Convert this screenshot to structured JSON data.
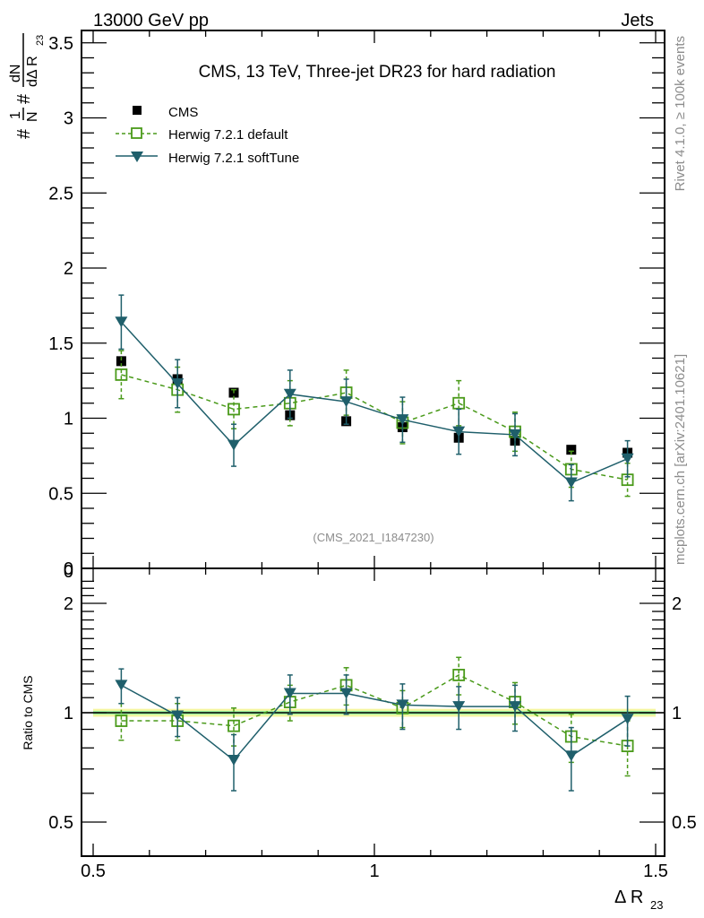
{
  "header": {
    "left_label": "13000 GeV pp",
    "right_label": "Jets"
  },
  "side_labels": {
    "rivet": "Rivet 4.1.0, ≥ 100k events",
    "mcplots": "mcplots.cern.ch [arXiv:2401.10621]"
  },
  "chart_data": [
    {
      "type": "line",
      "panel": "main",
      "title": "CMS, 13 TeV, Three-jet DR23 for hard radiation",
      "analysis_id": "(CMS_2021_I1847230)",
      "ylabel": "#frac{1}{N} #frac{dN}{dΔ R_{23}}",
      "ylabel_parts": {
        "hash": "#",
        "one": "1",
        "N": "N",
        "dN": "dN",
        "dDR": "dΔ R",
        "sub": "23"
      },
      "xlim": [
        0.5,
        1.5
      ],
      "ylim": [
        0,
        3.5
      ],
      "yticks": [
        0,
        0.5,
        1,
        1.5,
        2,
        2.5,
        3,
        3.5
      ],
      "ytick_labels": [
        "0",
        "0.5",
        "1",
        "1.5",
        "2",
        "2.5",
        "3",
        "3.5"
      ],
      "legend_position": "top-left",
      "x": [
        0.55,
        0.65,
        0.75,
        0.85,
        0.95,
        1.05,
        1.15,
        1.25,
        1.35,
        1.45
      ],
      "series": [
        {
          "name": "CMS",
          "style": "markers",
          "marker": "filled-square",
          "color": "#000000",
          "values": [
            1.38,
            1.26,
            1.17,
            1.02,
            0.98,
            0.94,
            0.87,
            0.85,
            0.79,
            0.77
          ],
          "errors": [
            0.01,
            0.01,
            0.01,
            0.01,
            0.01,
            0.01,
            0.01,
            0.01,
            0.01,
            0.01
          ]
        },
        {
          "name": "Herwig 7.2.1 default",
          "style": "dashed",
          "marker": "open-square",
          "color": "#4a9a1a",
          "values": [
            1.29,
            1.19,
            1.06,
            1.1,
            1.17,
            0.97,
            1.1,
            0.91,
            0.66,
            0.59
          ],
          "errors": [
            0.16,
            0.15,
            0.13,
            0.15,
            0.15,
            0.14,
            0.15,
            0.13,
            0.12,
            0.11
          ]
        },
        {
          "name": "Herwig 7.2.1 softTune",
          "style": "solid",
          "marker": "filled-triangle-down",
          "color": "#1f5f6b",
          "values": [
            1.64,
            1.23,
            0.82,
            1.16,
            1.11,
            0.99,
            0.91,
            0.89,
            0.57,
            0.73
          ],
          "errors": [
            0.18,
            0.16,
            0.14,
            0.16,
            0.15,
            0.15,
            0.15,
            0.14,
            0.12,
            0.12
          ]
        }
      ]
    },
    {
      "type": "line",
      "panel": "ratio",
      "ylabel": "Ratio to CMS",
      "xlabel": "Δ R",
      "xlabel_sub": "23",
      "yscale": "log",
      "xlim": [
        0.5,
        1.5
      ],
      "ylim": [
        0.4,
        2.3
      ],
      "xticks": [
        0.5,
        1,
        1.5
      ],
      "xtick_labels": [
        "0.5",
        "1",
        "1.5"
      ],
      "yticks": [
        0.5,
        1,
        2
      ],
      "ytick_labels": [
        "0.5",
        "1",
        "2"
      ],
      "x": [
        0.55,
        0.65,
        0.75,
        0.85,
        0.95,
        1.05,
        1.15,
        1.25,
        1.35,
        1.45
      ],
      "reference_band": {
        "inner_color": "#a0f5a0",
        "outer_color": "#f5f5a0",
        "inner": 0.012,
        "outer": 0.025
      },
      "series": [
        {
          "name": "Herwig 7.2.1 default",
          "style": "dashed",
          "marker": "open-square",
          "color": "#4a9a1a",
          "values": [
            0.95,
            0.95,
            0.92,
            1.07,
            1.19,
            1.03,
            1.27,
            1.07,
            0.86,
            0.81
          ],
          "errors": [
            0.11,
            0.11,
            0.11,
            0.12,
            0.14,
            0.12,
            0.15,
            0.14,
            0.13,
            0.14
          ]
        },
        {
          "name": "Herwig 7.2.1 softTune",
          "style": "solid",
          "marker": "filled-triangle-down",
          "color": "#1f5f6b",
          "values": [
            1.19,
            0.98,
            0.74,
            1.13,
            1.13,
            1.05,
            1.04,
            1.04,
            0.76,
            0.96
          ],
          "errors": [
            0.13,
            0.12,
            0.13,
            0.14,
            0.14,
            0.15,
            0.14,
            0.15,
            0.15,
            0.15
          ]
        }
      ]
    }
  ]
}
